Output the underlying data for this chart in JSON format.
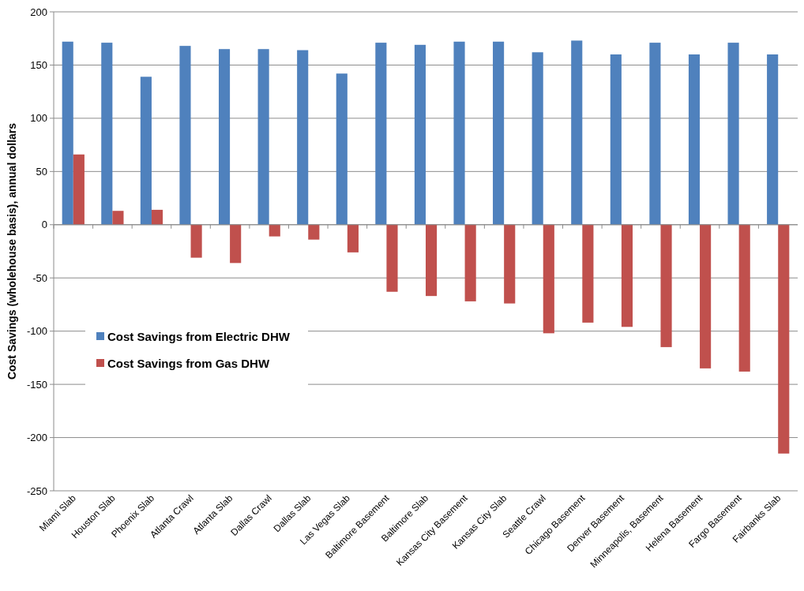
{
  "chart_data": {
    "type": "bar",
    "ylabel": "Cost Savings (wholehouse basis), annual dollars",
    "categories": [
      "Miami Slab",
      "Houston Slab",
      "Phoenix Slab",
      "Atlanta Crawl",
      "Atlanta Slab",
      "Dallas Crawl",
      "Dallas Slab",
      "Las Vegas Slab",
      "Baltimore Basement",
      "Baltimore Slab",
      "Kansas City Basement",
      "Kansas City Slab",
      "Seattle Crawl",
      "Chicago Basement",
      "Denver Basement",
      "Minneapolis, Basement",
      "Helena Basement",
      "Fargo Basement",
      "Fairbanks Slab"
    ],
    "series": [
      {
        "name": "Cost Savings from Electric DHW",
        "color": "#4f81bd",
        "values": [
          172,
          171,
          139,
          168,
          165,
          165,
          164,
          142,
          171,
          169,
          172,
          172,
          162,
          173,
          160,
          171,
          160,
          171,
          160
        ]
      },
      {
        "name": "Cost Savings from Gas DHW",
        "color": "#c0504d",
        "values": [
          66,
          13,
          14,
          -31,
          -36,
          -11,
          -14,
          -26,
          -63,
          -67,
          -72,
          -74,
          -102,
          -92,
          -96,
          -115,
          -135,
          -138,
          -215
        ]
      }
    ],
    "ylim": [
      -250,
      200
    ],
    "yticks": [
      -250,
      -200,
      -150,
      -100,
      -50,
      0,
      50,
      100,
      150,
      200
    ],
    "grid": "y",
    "legend": "left"
  }
}
